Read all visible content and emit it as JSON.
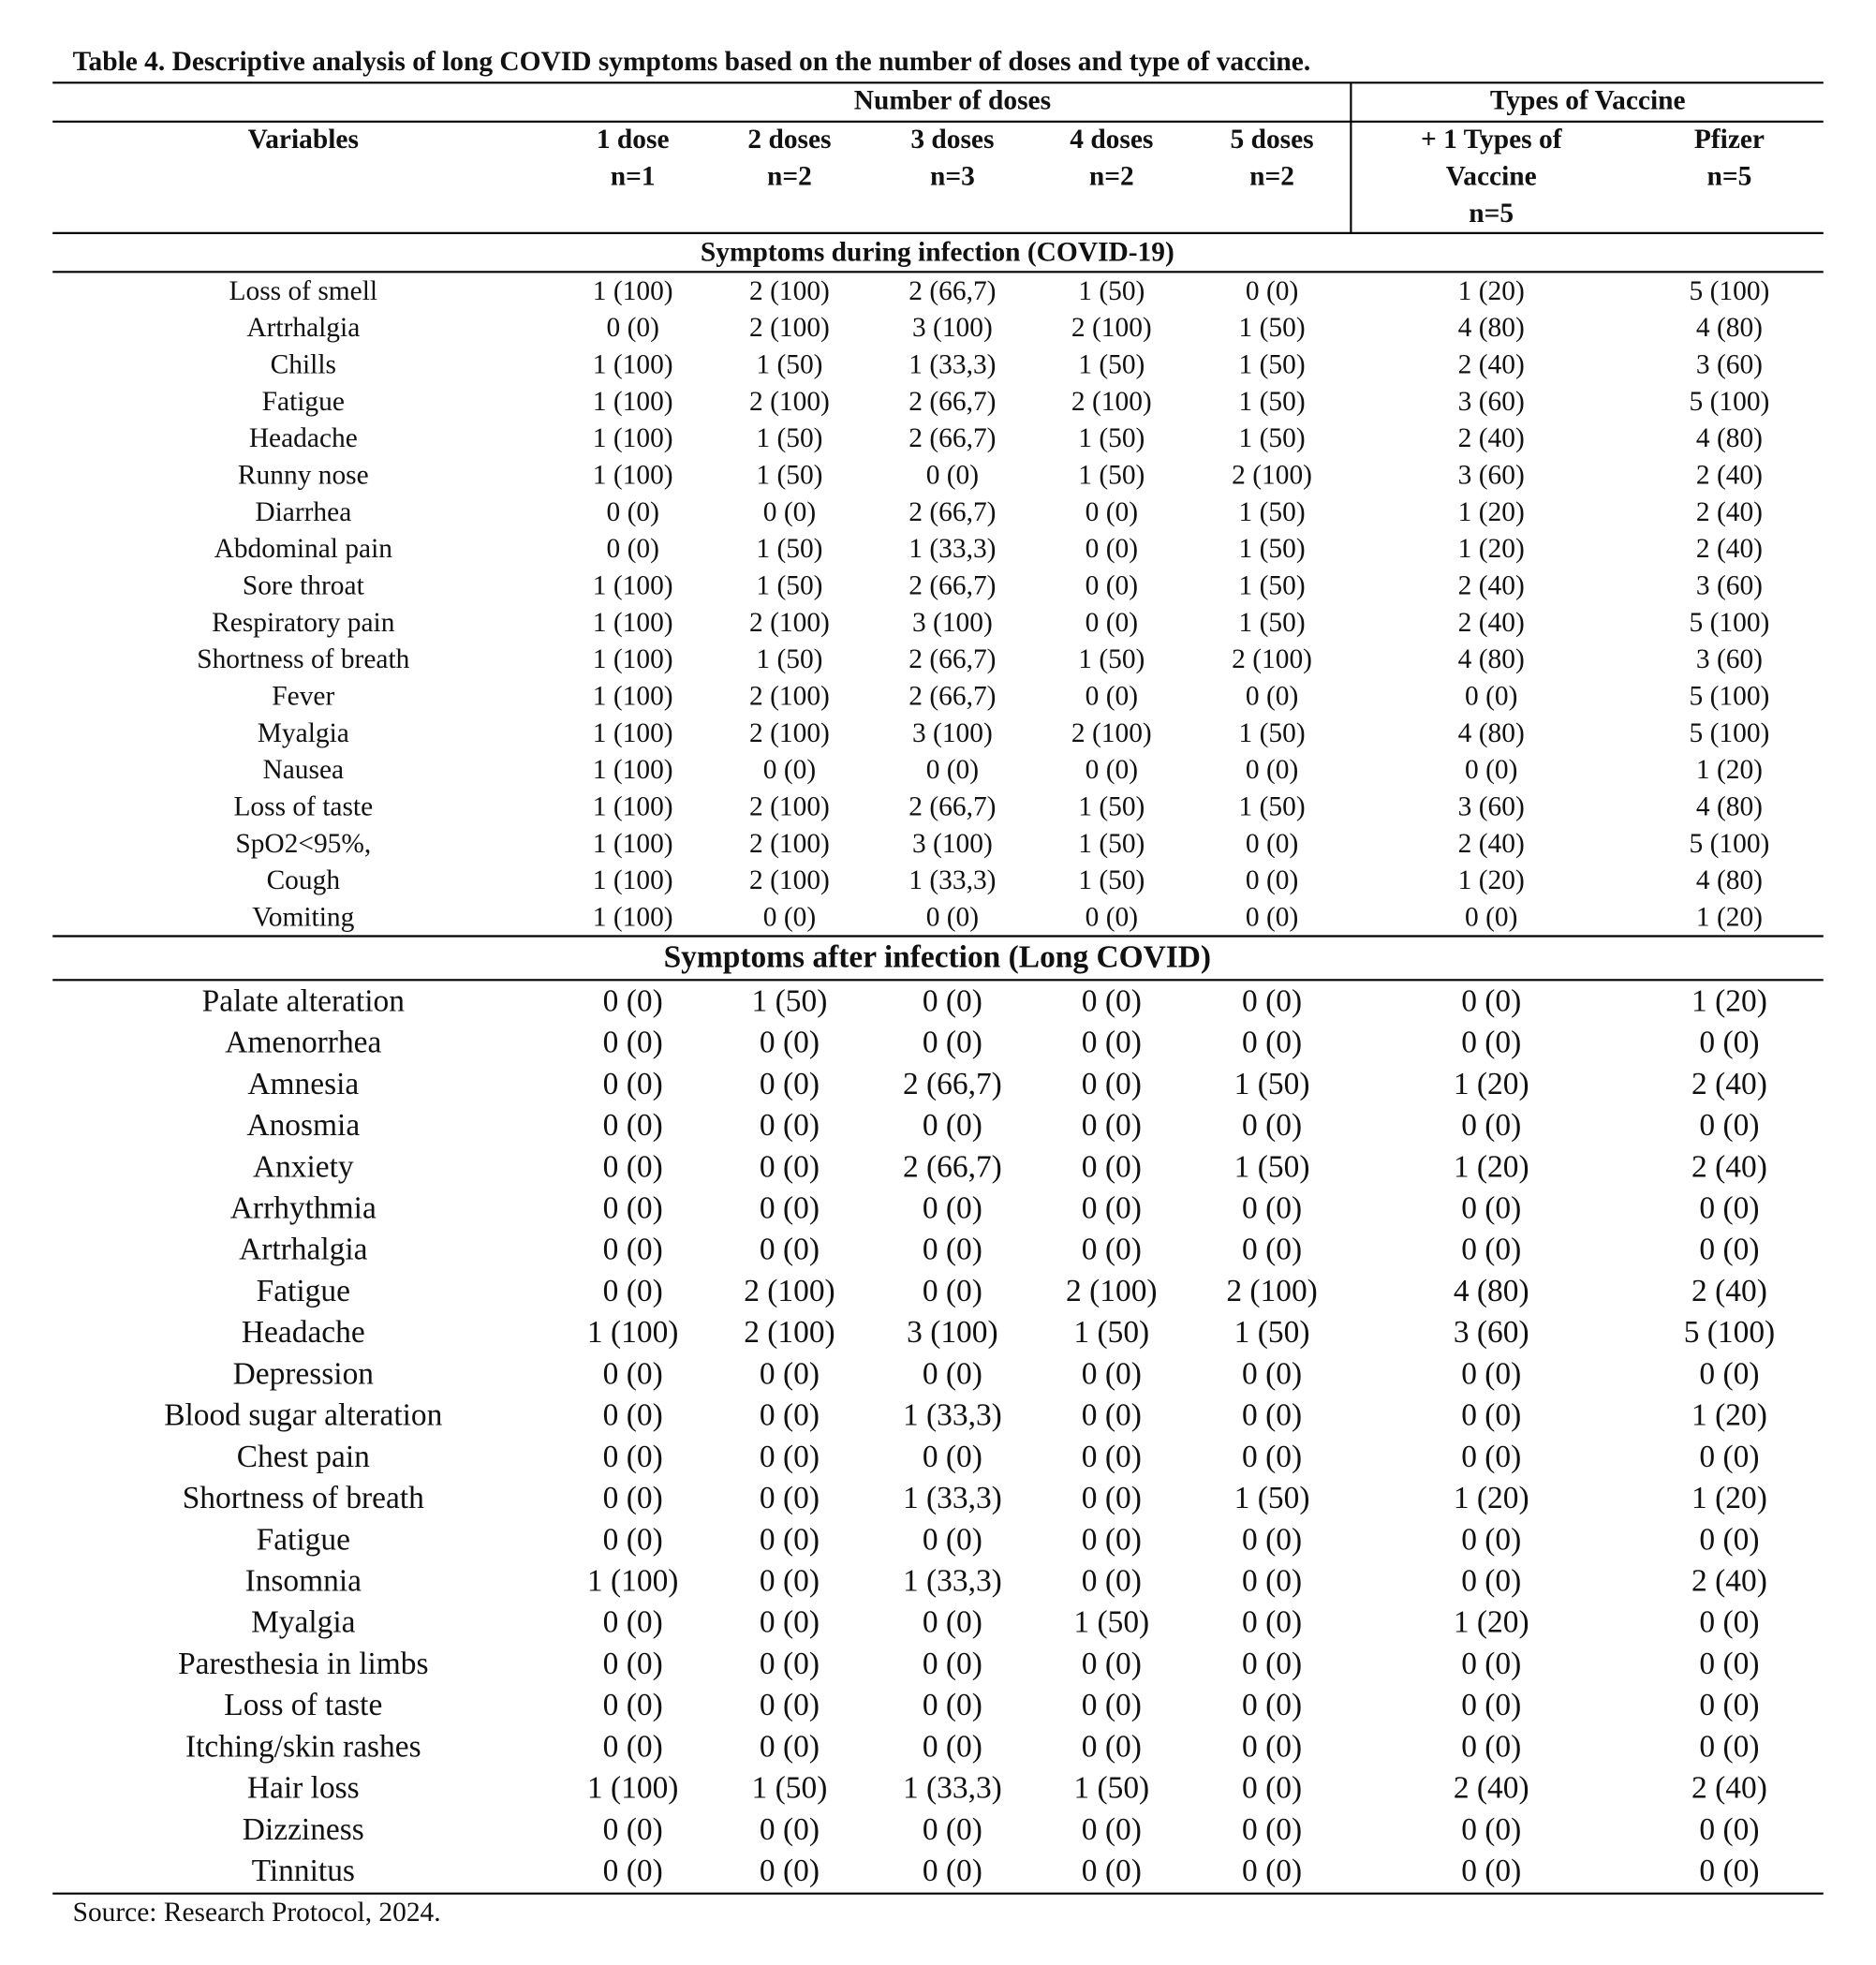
{
  "title": "Table 4. Descriptive analysis of long COVID symptoms based on the number of doses and type of vaccine.",
  "header": {
    "groups": [
      "Number of doses",
      "Types of Vaccine"
    ],
    "variables": "Variables",
    "columns": [
      [
        "1 dose",
        "n=1"
      ],
      [
        "2 doses",
        "n=2"
      ],
      [
        "3 doses",
        "n=3"
      ],
      [
        "4 doses",
        "n=2"
      ],
      [
        "5 doses",
        "n=2"
      ],
      [
        "+ 1 Types of",
        "Vaccine",
        "n=5"
      ],
      [
        "Pfizer",
        "n=5"
      ]
    ]
  },
  "sections": [
    {
      "heading": "Symptoms during infection (COVID-19)",
      "rows": [
        [
          "Loss of smell",
          "1 (100)",
          "2 (100)",
          "2 (66,7)",
          "1 (50)",
          "0 (0)",
          "1 (20)",
          "5 (100)"
        ],
        [
          "Artrhalgia",
          "0 (0)",
          "2 (100)",
          "3 (100)",
          "2 (100)",
          "1 (50)",
          "4 (80)",
          "4 (80)"
        ],
        [
          "Chills",
          "1 (100)",
          "1 (50)",
          "1 (33,3)",
          "1 (50)",
          "1 (50)",
          "2 (40)",
          "3 (60)"
        ],
        [
          "Fatigue",
          "1 (100)",
          "2 (100)",
          "2 (66,7)",
          "2 (100)",
          "1 (50)",
          "3 (60)",
          "5 (100)"
        ],
        [
          "Headache",
          "1 (100)",
          "1 (50)",
          "2 (66,7)",
          "1 (50)",
          "1 (50)",
          "2 (40)",
          "4 (80)"
        ],
        [
          "Runny nose",
          "1 (100)",
          "1 (50)",
          "0 (0)",
          "1 (50)",
          "2 (100)",
          "3 (60)",
          "2 (40)"
        ],
        [
          "Diarrhea",
          "0 (0)",
          "0 (0)",
          "2 (66,7)",
          "0 (0)",
          "1 (50)",
          "1 (20)",
          "2 (40)"
        ],
        [
          "Abdominal pain",
          "0 (0)",
          "1 (50)",
          "1 (33,3)",
          "0 (0)",
          "1 (50)",
          "1 (20)",
          "2 (40)"
        ],
        [
          "Sore throat",
          "1 (100)",
          "1 (50)",
          "2 (66,7)",
          "0 (0)",
          "1 (50)",
          "2 (40)",
          "3 (60)"
        ],
        [
          "Respiratory pain",
          "1 (100)",
          "2 (100)",
          "3 (100)",
          "0 (0)",
          "1 (50)",
          "2 (40)",
          "5 (100)"
        ],
        [
          "Shortness of breath",
          "1 (100)",
          "1 (50)",
          "2 (66,7)",
          "1 (50)",
          "2 (100)",
          "4 (80)",
          "3 (60)"
        ],
        [
          "Fever",
          "1 (100)",
          "2 (100)",
          "2 (66,7)",
          "0 (0)",
          "0 (0)",
          "0 (0)",
          "5 (100)"
        ],
        [
          "Myalgia",
          "1 (100)",
          "2 (100)",
          "3 (100)",
          "2 (100)",
          "1 (50)",
          "4 (80)",
          "5 (100)"
        ],
        [
          "Nausea",
          "1 (100)",
          "0 (0)",
          "0 (0)",
          "0 (0)",
          "0 (0)",
          "0 (0)",
          "1 (20)"
        ],
        [
          "Loss of taste",
          "1 (100)",
          "2 (100)",
          "2 (66,7)",
          "1 (50)",
          "1 (50)",
          "3 (60)",
          "4 (80)"
        ],
        [
          "SpO2<95%,",
          "1 (100)",
          "2 (100)",
          "3 (100)",
          "1 (50)",
          "0 (0)",
          "2 (40)",
          "5 (100)"
        ],
        [
          "Cough",
          "1 (100)",
          "2 (100)",
          "1 (33,3)",
          "1 (50)",
          "0 (0)",
          "1 (20)",
          "4 (80)"
        ],
        [
          "Vomiting",
          "1 (100)",
          "0 (0)",
          "0 (0)",
          "0 (0)",
          "0 (0)",
          "0 (0)",
          "1 (20)"
        ]
      ]
    },
    {
      "heading": "Symptoms after infection (Long COVID)",
      "rows": [
        [
          "Palate alteration",
          "0 (0)",
          "1 (50)",
          "0 (0)",
          "0 (0)",
          "0 (0)",
          "0 (0)",
          "1 (20)"
        ],
        [
          "Amenorrhea",
          "0 (0)",
          "0 (0)",
          "0 (0)",
          "0 (0)",
          "0 (0)",
          "0 (0)",
          "0 (0)"
        ],
        [
          "Amnesia",
          "0 (0)",
          "0 (0)",
          "2 (66,7)",
          "0 (0)",
          "1 (50)",
          "1 (20)",
          "2 (40)"
        ],
        [
          "Anosmia",
          "0 (0)",
          "0 (0)",
          "0 (0)",
          "0 (0)",
          "0 (0)",
          "0 (0)",
          "0 (0)"
        ],
        [
          "Anxiety",
          "0 (0)",
          "0 (0)",
          "2 (66,7)",
          "0 (0)",
          "1 (50)",
          "1 (20)",
          "2 (40)"
        ],
        [
          "Arrhythmia",
          "0 (0)",
          "0 (0)",
          "0 (0)",
          "0 (0)",
          "0 (0)",
          "0 (0)",
          "0 (0)"
        ],
        [
          "Artrhalgia",
          "0 (0)",
          "0 (0)",
          "0 (0)",
          "0 (0)",
          "0 (0)",
          "0 (0)",
          "0 (0)"
        ],
        [
          "Fatigue",
          "0 (0)",
          "2 (100)",
          "0 (0)",
          "2 (100)",
          "2 (100)",
          "4 (80)",
          "2 (40)"
        ],
        [
          "Headache",
          "1 (100)",
          "2 (100)",
          "3 (100)",
          "1 (50)",
          "1 (50)",
          "3 (60)",
          "5 (100)"
        ],
        [
          "Depression",
          "0 (0)",
          "0 (0)",
          "0 (0)",
          "0 (0)",
          "0 (0)",
          "0 (0)",
          "0 (0)"
        ],
        [
          "Blood sugar alteration",
          "0 (0)",
          "0 (0)",
          "1 (33,3)",
          "0 (0)",
          "0 (0)",
          "0 (0)",
          "1 (20)"
        ],
        [
          "Chest pain",
          "0 (0)",
          "0 (0)",
          "0 (0)",
          "0 (0)",
          "0 (0)",
          "0 (0)",
          "0 (0)"
        ],
        [
          "Shortness of breath",
          "0 (0)",
          "0 (0)",
          "1 (33,3)",
          "0 (0)",
          "1 (50)",
          "1 (20)",
          "1 (20)"
        ],
        [
          "Fatigue",
          "0 (0)",
          "0 (0)",
          "0 (0)",
          "0 (0)",
          "0 (0)",
          "0 (0)",
          "0 (0)"
        ],
        [
          "Insomnia",
          "1 (100)",
          "0 (0)",
          "1 (33,3)",
          "0 (0)",
          "0 (0)",
          "0 (0)",
          "2 (40)"
        ],
        [
          "Myalgia",
          "0 (0)",
          "0 (0)",
          "0 (0)",
          "1 (50)",
          "0 (0)",
          "1 (20)",
          "0 (0)"
        ],
        [
          "Paresthesia in limbs",
          "0 (0)",
          "0 (0)",
          "0 (0)",
          "0 (0)",
          "0 (0)",
          "0 (0)",
          "0 (0)"
        ],
        [
          "Loss of taste",
          "0 (0)",
          "0 (0)",
          "0 (0)",
          "0 (0)",
          "0 (0)",
          "0 (0)",
          "0 (0)"
        ],
        [
          "Itching/skin rashes",
          "0 (0)",
          "0 (0)",
          "0 (0)",
          "0 (0)",
          "0 (0)",
          "0 (0)",
          "0 (0)"
        ],
        [
          "Hair loss",
          "1 (100)",
          "1 (50)",
          "1 (33,3)",
          "1 (50)",
          "0 (0)",
          "2 (40)",
          "2 (40)"
        ],
        [
          "Dizziness",
          "0 (0)",
          "0 (0)",
          "0 (0)",
          "0 (0)",
          "0 (0)",
          "0 (0)",
          "0 (0)"
        ],
        [
          "Tinnitus",
          "0 (0)",
          "0 (0)",
          "0 (0)",
          "0 (0)",
          "0 (0)",
          "0 (0)",
          "0 (0)"
        ]
      ]
    }
  ],
  "source": "Source: Research Protocol, 2024."
}
